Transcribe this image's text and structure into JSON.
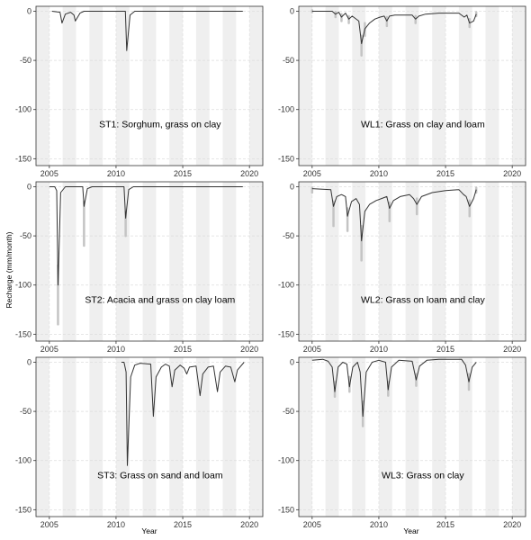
{
  "figure": {
    "ylabel": "Recharge (mm/month)",
    "xlabel": "Year",
    "colors": {
      "band": "#efefef",
      "grid": "#dedede",
      "frame": "#333333",
      "line": "#333333",
      "spread": "#c4c4c4"
    }
  },
  "chart_data": [
    {
      "type": "line",
      "title": "ST1: Sorghum, grass on clay",
      "xlim": [
        2004,
        2021
      ],
      "ylim": [
        -157,
        5
      ],
      "xticks": [
        "2005",
        "2010",
        "2015",
        "2020"
      ],
      "yticks": [
        "0",
        "-50",
        "-100",
        "-150"
      ],
      "range": [
        2005.2,
        2019.5
      ],
      "points": [
        [
          2005.2,
          0
        ],
        [
          2005.8,
          -1
        ],
        [
          2005.95,
          -12
        ],
        [
          2006.2,
          -3
        ],
        [
          2006.6,
          -1
        ],
        [
          2006.85,
          -4
        ],
        [
          2006.95,
          -10
        ],
        [
          2007.3,
          -2
        ],
        [
          2007.6,
          0
        ],
        [
          2010.7,
          0
        ],
        [
          2010.8,
          -40
        ],
        [
          2011.05,
          -4
        ],
        [
          2011.4,
          0
        ],
        [
          2019.5,
          0
        ]
      ],
      "spread": []
    },
    {
      "type": "line",
      "title": "WL1: Grass on clay and loam",
      "xlim": [
        2004,
        2021
      ],
      "ylim": [
        -157,
        5
      ],
      "xticks": [
        "2005",
        "2010",
        "2015",
        "2020"
      ],
      "yticks": [
        "0",
        "-50",
        "-100",
        "-150"
      ],
      "range": [
        2005.0,
        2017.3
      ],
      "points": [
        [
          2005.0,
          0
        ],
        [
          2006.5,
          0
        ],
        [
          2006.75,
          -3
        ],
        [
          2007.0,
          -1
        ],
        [
          2007.2,
          -6
        ],
        [
          2007.5,
          -2
        ],
        [
          2007.75,
          -8
        ],
        [
          2008.0,
          -5
        ],
        [
          2008.5,
          -10
        ],
        [
          2008.7,
          -33
        ],
        [
          2008.95,
          -18
        ],
        [
          2009.3,
          -12
        ],
        [
          2009.7,
          -8
        ],
        [
          2010.1,
          -6
        ],
        [
          2010.4,
          -5
        ],
        [
          2010.6,
          -10
        ],
        [
          2010.8,
          -5
        ],
        [
          2011.2,
          -4
        ],
        [
          2012.0,
          -4
        ],
        [
          2012.5,
          -4
        ],
        [
          2012.75,
          -8
        ],
        [
          2013.0,
          -5
        ],
        [
          2013.5,
          -3
        ],
        [
          2014.5,
          -2
        ],
        [
          2016.0,
          -2
        ],
        [
          2016.4,
          -6
        ],
        [
          2016.6,
          -4
        ],
        [
          2016.8,
          -12
        ],
        [
          2017.1,
          -10
        ],
        [
          2017.3,
          -3
        ]
      ],
      "spread": [
        [
          2005.0,
          1,
          -1
        ],
        [
          2006.75,
          -1,
          -6
        ],
        [
          2007.2,
          -3,
          -10
        ],
        [
          2007.75,
          -5,
          -12
        ],
        [
          2008.7,
          -25,
          -45
        ],
        [
          2008.95,
          -12,
          -25
        ],
        [
          2010.6,
          -6,
          -15
        ],
        [
          2012.75,
          -5,
          -12
        ],
        [
          2016.8,
          -8,
          -16
        ],
        [
          2017.3,
          -1,
          -5
        ]
      ]
    },
    {
      "type": "line",
      "title": "ST2: Acacia and grass on clay loam",
      "xlim": [
        2004,
        2021
      ],
      "ylim": [
        -157,
        5
      ],
      "xticks": [
        "2005",
        "2010",
        "2015",
        "2020"
      ],
      "yticks": [
        "0",
        "-50",
        "-100",
        "-150"
      ],
      "range": [
        2005.0,
        2019.5
      ],
      "points": [
        [
          2005.0,
          0
        ],
        [
          2005.4,
          0
        ],
        [
          2005.55,
          -4
        ],
        [
          2005.65,
          -100
        ],
        [
          2005.85,
          -6
        ],
        [
          2006.2,
          0
        ],
        [
          2007.5,
          0
        ],
        [
          2007.6,
          -20
        ],
        [
          2007.85,
          -2
        ],
        [
          2008.2,
          0
        ],
        [
          2010.6,
          0
        ],
        [
          2010.72,
          -32
        ],
        [
          2010.95,
          -3
        ],
        [
          2011.3,
          0
        ],
        [
          2019.5,
          0
        ]
      ],
      "spread": [
        [
          2005.65,
          -80,
          -140
        ],
        [
          2007.6,
          -15,
          -60
        ],
        [
          2010.72,
          -25,
          -50
        ]
      ]
    },
    {
      "type": "line",
      "title": "WL2: Grass on loam and clay",
      "xlim": [
        2004,
        2021
      ],
      "ylim": [
        -157,
        5
      ],
      "xticks": [
        "2005",
        "2010",
        "2015",
        "2020"
      ],
      "yticks": [
        "0",
        "-50",
        "-100",
        "-150"
      ],
      "range": [
        2005.0,
        2017.3
      ],
      "points": [
        [
          2005.0,
          -2
        ],
        [
          2006.4,
          -3
        ],
        [
          2006.6,
          -20
        ],
        [
          2006.85,
          -10
        ],
        [
          2007.2,
          -8
        ],
        [
          2007.5,
          -10
        ],
        [
          2007.65,
          -30
        ],
        [
          2007.95,
          -15
        ],
        [
          2008.3,
          -12
        ],
        [
          2008.55,
          -18
        ],
        [
          2008.7,
          -55
        ],
        [
          2008.95,
          -25
        ],
        [
          2009.3,
          -18
        ],
        [
          2009.8,
          -14
        ],
        [
          2010.2,
          -12
        ],
        [
          2010.6,
          -10
        ],
        [
          2010.8,
          -22
        ],
        [
          2011.1,
          -14
        ],
        [
          2011.6,
          -10
        ],
        [
          2012.3,
          -8
        ],
        [
          2012.6,
          -12
        ],
        [
          2012.85,
          -18
        ],
        [
          2013.2,
          -10
        ],
        [
          2014.0,
          -6
        ],
        [
          2015.0,
          -4
        ],
        [
          2016.0,
          -3
        ],
        [
          2016.35,
          -8
        ],
        [
          2016.55,
          -10
        ],
        [
          2016.8,
          -20
        ],
        [
          2017.1,
          -12
        ],
        [
          2017.3,
          -3
        ]
      ],
      "spread": [
        [
          2005.0,
          -1,
          -6
        ],
        [
          2006.6,
          -15,
          -40
        ],
        [
          2007.65,
          -22,
          -45
        ],
        [
          2008.7,
          -40,
          -75
        ],
        [
          2010.8,
          -16,
          -35
        ],
        [
          2012.85,
          -12,
          -28
        ],
        [
          2016.8,
          -14,
          -30
        ],
        [
          2017.3,
          -1,
          -6
        ]
      ]
    },
    {
      "type": "line",
      "title": "ST3: Grass on sand and loam",
      "xlim": [
        2004,
        2021
      ],
      "ylim": [
        -157,
        5
      ],
      "xticks": [
        "2005",
        "2010",
        "2015",
        "2020"
      ],
      "yticks": [
        "0",
        "-50",
        "-100",
        "-150"
      ],
      "xlabel": "Year",
      "range": [
        2010.4,
        2019.6
      ],
      "points": [
        [
          2010.4,
          0
        ],
        [
          2010.6,
          0
        ],
        [
          2010.75,
          -10
        ],
        [
          2010.85,
          -105
        ],
        [
          2011.1,
          -15
        ],
        [
          2011.4,
          -3
        ],
        [
          2011.8,
          -1
        ],
        [
          2012.6,
          -2
        ],
        [
          2012.8,
          -55
        ],
        [
          2013.0,
          -15
        ],
        [
          2013.4,
          -5
        ],
        [
          2013.7,
          -2
        ],
        [
          2014.0,
          -4
        ],
        [
          2014.2,
          -25
        ],
        [
          2014.4,
          -8
        ],
        [
          2014.8,
          -3
        ],
        [
          2015.1,
          -6
        ],
        [
          2015.3,
          -12
        ],
        [
          2015.5,
          -5
        ],
        [
          2016.0,
          -4
        ],
        [
          2016.3,
          -34
        ],
        [
          2016.5,
          -12
        ],
        [
          2016.9,
          -5
        ],
        [
          2017.3,
          -4
        ],
        [
          2017.6,
          -30
        ],
        [
          2017.8,
          -10
        ],
        [
          2018.2,
          -4
        ],
        [
          2018.6,
          -5
        ],
        [
          2018.9,
          -20
        ],
        [
          2019.1,
          -8
        ],
        [
          2019.6,
          0
        ]
      ],
      "spread": []
    },
    {
      "type": "line",
      "title": "WL3: Grass on clay",
      "xlim": [
        2004,
        2021
      ],
      "ylim": [
        -157,
        5
      ],
      "xticks": [
        "2005",
        "2010",
        "2015",
        "2020"
      ],
      "yticks": [
        "0",
        "-50",
        "-100",
        "-150"
      ],
      "xlabel": "Year",
      "range": [
        2005.0,
        2017.3
      ],
      "points": [
        [
          2005.0,
          2
        ],
        [
          2005.8,
          3
        ],
        [
          2006.2,
          1
        ],
        [
          2006.5,
          -5
        ],
        [
          2006.7,
          -30
        ],
        [
          2006.95,
          -5
        ],
        [
          2007.3,
          0
        ],
        [
          2007.6,
          -2
        ],
        [
          2007.8,
          -25
        ],
        [
          2008.05,
          -5
        ],
        [
          2008.4,
          0
        ],
        [
          2008.6,
          -10
        ],
        [
          2008.8,
          -55
        ],
        [
          2009.05,
          -10
        ],
        [
          2009.5,
          0
        ],
        [
          2010.0,
          2
        ],
        [
          2010.5,
          0
        ],
        [
          2010.7,
          -28
        ],
        [
          2010.95,
          -5
        ],
        [
          2011.5,
          2
        ],
        [
          2012.5,
          1
        ],
        [
          2012.8,
          -18
        ],
        [
          2013.05,
          -4
        ],
        [
          2013.6,
          2
        ],
        [
          2014.5,
          3
        ],
        [
          2015.5,
          3
        ],
        [
          2016.2,
          3
        ],
        [
          2016.5,
          -3
        ],
        [
          2016.75,
          -20
        ],
        [
          2017.0,
          -5
        ],
        [
          2017.3,
          0
        ]
      ],
      "spread": [
        [
          2006.7,
          -20,
          -35
        ],
        [
          2007.8,
          -15,
          -30
        ],
        [
          2008.8,
          -40,
          -65
        ],
        [
          2010.7,
          -20,
          -34
        ],
        [
          2012.8,
          -12,
          -24
        ],
        [
          2016.75,
          -12,
          -28
        ]
      ]
    }
  ]
}
